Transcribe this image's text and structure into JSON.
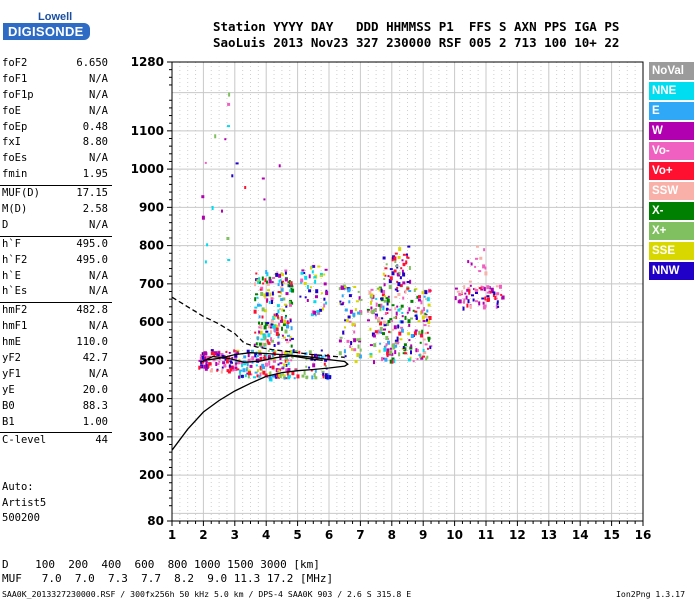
{
  "logo": {
    "line1": "Lowell",
    "line2": "DIGISONDE"
  },
  "header": {
    "line1": "Station YYYY DAY   DDD HHMMSS P1  FFS S AXN PPS IGA PS",
    "line2": "SaoLuis 2013 Nov23 327 230000 RSF 005 2 713 100 10+ 22"
  },
  "params": {
    "g1": [
      [
        "foF2",
        "6.650"
      ],
      [
        "foF1",
        "N/A"
      ],
      [
        "foF1p",
        "N/A"
      ],
      [
        "foE",
        "N/A"
      ],
      [
        "foEp",
        "0.48"
      ],
      [
        "fxI",
        "8.80"
      ],
      [
        "foEs",
        "N/A"
      ],
      [
        "fmin",
        "1.95"
      ]
    ],
    "g2": [
      [
        "MUF(D)",
        "17.15"
      ],
      [
        "M(D)",
        "2.58"
      ],
      [
        "D",
        "N/A"
      ]
    ],
    "g3": [
      [
        "h`F",
        "495.0"
      ],
      [
        "h`F2",
        "495.0"
      ],
      [
        "h`E",
        "N/A"
      ],
      [
        "h`Es",
        "N/A"
      ]
    ],
    "g4": [
      [
        "hmF2",
        "482.8"
      ],
      [
        "hmF1",
        "N/A"
      ],
      [
        "hmE",
        "110.0"
      ],
      [
        "yF2",
        "42.7"
      ],
      [
        "yF1",
        "N/A"
      ],
      [
        "yE",
        "20.0"
      ],
      [
        "B0",
        "88.3"
      ],
      [
        "B1",
        "1.00"
      ]
    ],
    "g5": [
      [
        "C-level",
        "44"
      ]
    ]
  },
  "auto": {
    "line1": "Auto:",
    "line2": "Artist5",
    "line3": "500200"
  },
  "legend": [
    {
      "label": "NoVal",
      "color": "#9b9b9b"
    },
    {
      "label": "NNE",
      "color": "#00dcf0"
    },
    {
      "label": "E",
      "color": "#30a8f8"
    },
    {
      "label": "W",
      "color": "#b000b0"
    },
    {
      "label": "Vo-",
      "color": "#f060c0"
    },
    {
      "label": "Vo+",
      "color": "#ff1030"
    },
    {
      "label": "SSW",
      "color": "#f8b0a8"
    },
    {
      "label": "X-",
      "color": "#008000"
    },
    {
      "label": "X+",
      "color": "#80c060"
    },
    {
      "label": "SSE",
      "color": "#d8d800"
    },
    {
      "label": "NNW",
      "color": "#2000c8"
    }
  ],
  "footer": {
    "d_line": "D    100  200  400  600  800 1000 1500 3000 [km]",
    "muf_line": "MUF   7.0  7.0  7.3  7.7  8.2  9.0 11.3 17.2 [MHz]",
    "file_line": "SAA0K_2013327230000.RSF / 300fx256h 50 kHz 5.0 km / DPS-4 SAA0K 903 / 2.6 S 315.8 E",
    "version": "Ion2Png 1.3.17"
  },
  "chart_data": {
    "type": "scatter",
    "xlim": [
      1,
      16
    ],
    "ylim": [
      80,
      1280
    ],
    "x_ticks": [
      1,
      2,
      3,
      4,
      5,
      6,
      7,
      8,
      9,
      10,
      11,
      12,
      13,
      14,
      15,
      16
    ],
    "y_ticks": [
      80,
      200,
      300,
      400,
      500,
      600,
      700,
      800,
      900,
      1000,
      1100,
      1280
    ],
    "grid": true,
    "echo_clusters": [
      {
        "f": [
          1.8,
          2.2
        ],
        "h": [
          480,
          525
        ],
        "n": 35,
        "colors": [
          "Vo+",
          "Vo-",
          "W",
          "NNW"
        ]
      },
      {
        "f": [
          2.2,
          3.0
        ],
        "h": [
          470,
          530
        ],
        "n": 60,
        "colors": [
          "Vo+",
          "W",
          "Vo-",
          "NNW",
          "SSW"
        ]
      },
      {
        "f": [
          3.0,
          4.8
        ],
        "h": [
          455,
          530
        ],
        "n": 150,
        "colors": [
          "W",
          "NNW",
          "Vo+",
          "Vo-",
          "NNE",
          "SSE",
          "X+",
          "E"
        ]
      },
      {
        "f": [
          3.6,
          4.8
        ],
        "h": [
          540,
          740
        ],
        "n": 180,
        "colors": [
          "NNW",
          "W",
          "Vo-",
          "NNE",
          "Vo+",
          "SSE",
          "X+",
          "X-",
          "E",
          "SSW"
        ]
      },
      {
        "f": [
          4.8,
          6.0
        ],
        "h": [
          455,
          530
        ],
        "n": 50,
        "colors": [
          "NNW",
          "W",
          "Vo+",
          "E",
          "X+"
        ]
      },
      {
        "f": [
          5.0,
          5.9
        ],
        "h": [
          620,
          750
        ],
        "n": 45,
        "colors": [
          "W",
          "NNW",
          "SSE",
          "Vo-",
          "NNE"
        ]
      },
      {
        "f": [
          6.3,
          7.0
        ],
        "h": [
          500,
          700
        ],
        "n": 60,
        "colors": [
          "NNW",
          "W",
          "Vo-",
          "SSE",
          "E",
          "X+"
        ]
      },
      {
        "f": [
          7.2,
          9.2
        ],
        "h": [
          500,
          700
        ],
        "n": 240,
        "colors": [
          "NNW",
          "W",
          "Vo-",
          "NNE",
          "SSE",
          "X+",
          "X-",
          "E",
          "Vo+",
          "SSW"
        ]
      },
      {
        "f": [
          7.7,
          8.6
        ],
        "h": [
          700,
          800
        ],
        "n": 45,
        "colors": [
          "Vo+",
          "SSE",
          "W",
          "X+",
          "NNW"
        ]
      },
      {
        "f": [
          10.0,
          11.5
        ],
        "h": [
          640,
          700
        ],
        "n": 70,
        "colors": [
          "Vo+",
          "Vo-",
          "W",
          "SSW",
          "NNW"
        ]
      },
      {
        "f": [
          10.3,
          11.0
        ],
        "h": [
          700,
          800
        ],
        "n": 12,
        "colors": [
          "SSW",
          "Vo-",
          "W"
        ]
      },
      {
        "f": [
          1.7,
          2.8
        ],
        "h": [
          750,
          1260
        ],
        "n": 14,
        "colors": [
          "W",
          "NNE",
          "Vo-",
          "X+"
        ]
      },
      {
        "f": [
          2.8,
          4.8
        ],
        "h": [
          900,
          1020
        ],
        "n": 6,
        "colors": [
          "W",
          "NNW",
          "Vo+"
        ]
      }
    ],
    "traces": [
      {
        "name": "profile-upper-dashed",
        "style": "dashed",
        "points": [
          [
            1,
            665
          ],
          [
            1.5,
            640
          ],
          [
            2,
            615
          ],
          [
            2.5,
            595
          ],
          [
            3,
            570
          ],
          [
            3.3,
            545
          ],
          [
            3.7,
            535
          ],
          [
            4.2,
            528
          ],
          [
            4.8,
            522
          ],
          [
            5.5,
            515
          ],
          [
            6.5,
            508
          ]
        ]
      },
      {
        "name": "profile-main",
        "style": "solid",
        "points": [
          [
            1,
            265
          ],
          [
            1.5,
            320
          ],
          [
            2,
            365
          ],
          [
            2.5,
            395
          ],
          [
            3,
            420
          ],
          [
            3.5,
            440
          ],
          [
            4,
            458
          ],
          [
            4.5,
            468
          ],
          [
            5,
            473
          ],
          [
            5.5,
            476
          ],
          [
            6,
            480
          ],
          [
            6.5,
            485
          ],
          [
            6.6,
            490
          ],
          [
            6.5,
            497
          ],
          [
            6,
            502
          ],
          [
            5.5,
            508
          ],
          [
            5,
            512
          ],
          [
            4.5,
            515
          ],
          [
            4,
            518
          ],
          [
            3.5,
            520
          ],
          [
            3,
            515
          ],
          [
            2.5,
            505
          ],
          [
            2,
            500
          ]
        ]
      },
      {
        "name": "profile-x-trace",
        "style": "solid",
        "points": [
          [
            1.9,
            495
          ],
          [
            2.3,
            510
          ],
          [
            2.8,
            505
          ],
          [
            3.3,
            495
          ],
          [
            3.8,
            498
          ],
          [
            4.3,
            507
          ],
          [
            4.8,
            512
          ],
          [
            5.3,
            505
          ],
          [
            5.8,
            500
          ]
        ]
      }
    ]
  }
}
